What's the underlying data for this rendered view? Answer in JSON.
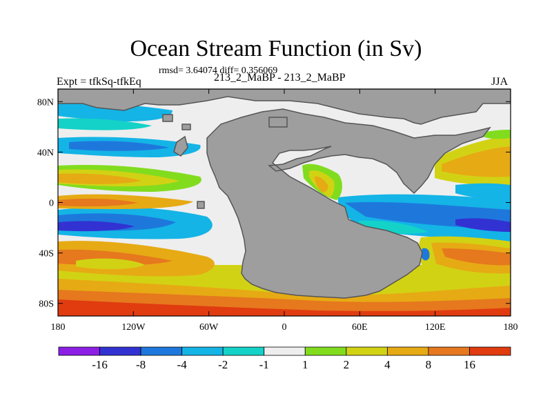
{
  "header": {
    "title": "Ocean Stream Function (in Sv)",
    "stats": "rmsd= 3.64074 diff= 0.356069",
    "left_label": "Expt = tfkSq-tfkEq",
    "center_label": "213_2_MaBP - 213_2_MaBP",
    "right_label": "JJA"
  },
  "map": {
    "lon_ticks": [
      {
        "value": -180,
        "label": "180"
      },
      {
        "value": -120,
        "label": "120W"
      },
      {
        "value": -60,
        "label": "60W"
      },
      {
        "value": 0,
        "label": "0"
      },
      {
        "value": 60,
        "label": "60E"
      },
      {
        "value": 120,
        "label": "120E"
      },
      {
        "value": 180,
        "label": "180"
      }
    ],
    "lat_ticks": [
      {
        "value": 80,
        "label": "80N"
      },
      {
        "value": 40,
        "label": "40N"
      },
      {
        "value": 0,
        "label": "0"
      },
      {
        "value": -40,
        "label": "40S"
      },
      {
        "value": -80,
        "label": "80S"
      }
    ],
    "lon_range": [
      -180,
      180
    ],
    "lat_range": [
      -90,
      90
    ],
    "land_color": "#9e9e9e"
  },
  "colorbar": {
    "colors": [
      "#8c1ee6",
      "#3232d2",
      "#1e78dc",
      "#14b4e6",
      "#14d2c8",
      "#eeeeee",
      "#82dc1e",
      "#d2d214",
      "#e6aa14",
      "#e6781e",
      "#e03c10"
    ],
    "labels": [
      "-16",
      "-8",
      "-4",
      "-2",
      "-1",
      "1",
      "2",
      "4",
      "8",
      "16"
    ]
  }
}
